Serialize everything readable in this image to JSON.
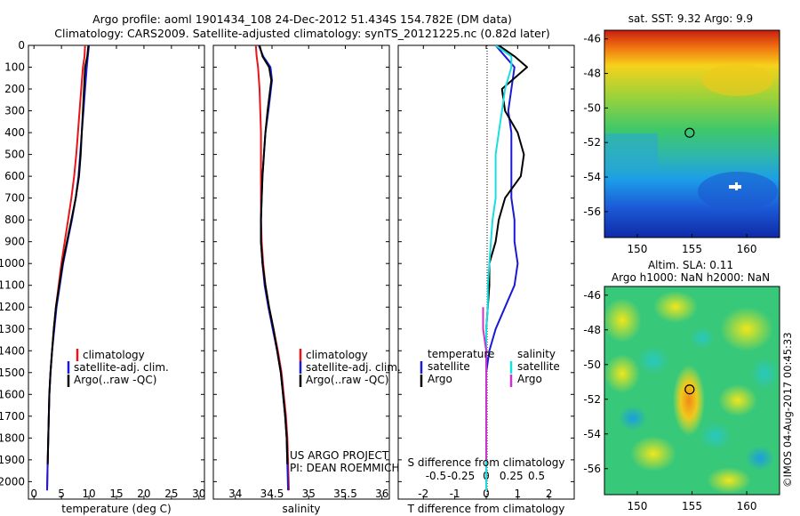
{
  "title": {
    "line1": "Argo profile: aoml 1901434_108 24-Dec-2012 51.434S 154.782E (DM data)",
    "line2": "Climatology: CARS2009. Satellite-adjusted climatology: synTS_20121225.nc (0.82d later)"
  },
  "colors": {
    "climatology": "#e8141a",
    "satellite": "#1a1ad6",
    "argo": "#000000",
    "sat_salinity": "#19dede",
    "argo_salinity": "#cc33cc"
  },
  "credit": {
    "line1": "US ARGO PROJECT",
    "line2": "PI: DEAN ROEMMICH"
  },
  "watermark": "©IMOS 04-Aug-2017 00:45:33",
  "chart_data": [
    {
      "type": "line",
      "xlabel": "temperature (deg C)",
      "xlim": [
        -1,
        31
      ],
      "ylim": [
        2080,
        0
      ],
      "xticks": [
        0,
        5,
        10,
        15,
        20,
        25,
        30
      ],
      "yticks": [
        0,
        100,
        200,
        300,
        400,
        500,
        600,
        700,
        800,
        900,
        1000,
        1100,
        1200,
        1300,
        1400,
        1500,
        1600,
        1700,
        1800,
        1900,
        2000
      ],
      "legend": [
        "climatology",
        "satellite-adj. clim.",
        "Argo(..raw -QC)"
      ],
      "series": [
        {
          "name": "climatology",
          "color": "#e8141a",
          "x": [
            9.3,
            9.2,
            8.9,
            8.6,
            8.3,
            8.0,
            7.7,
            7.3,
            6.8,
            6.2,
            5.6,
            5.0,
            4.5,
            4.0,
            3.6,
            3.3,
            3.0,
            2.8,
            2.7,
            2.6,
            2.5,
            2.4
          ],
          "y": [
            0,
            50,
            100,
            200,
            300,
            400,
            500,
            600,
            700,
            800,
            900,
            1000,
            1100,
            1200,
            1300,
            1400,
            1500,
            1600,
            1700,
            1800,
            1900,
            2040
          ]
        },
        {
          "name": "satellite-adj. clim.",
          "color": "#1a1ad6",
          "x": [
            10.0,
            9.8,
            9.6,
            9.3,
            9.0,
            8.7,
            8.4,
            8.1,
            7.6,
            6.9,
            6.1,
            5.3,
            4.7,
            4.1,
            3.7,
            3.3,
            3.0,
            2.8,
            2.7,
            2.6,
            2.5,
            2.4
          ],
          "y": [
            0,
            50,
            100,
            200,
            300,
            400,
            500,
            600,
            700,
            800,
            900,
            1000,
            1100,
            1200,
            1300,
            1400,
            1500,
            1600,
            1700,
            1800,
            1900,
            2040
          ]
        },
        {
          "name": "Argo(..raw -QC)",
          "color": "#000000",
          "x": [
            9.9,
            9.7,
            9.3,
            9.1,
            8.9,
            8.7,
            8.5,
            8.2,
            7.6,
            6.8,
            6.0,
            5.2,
            4.6,
            4.0,
            3.6,
            3.3,
            3.0,
            2.8,
            2.7,
            2.6,
            2.5
          ],
          "y": [
            0,
            50,
            100,
            200,
            300,
            400,
            500,
            600,
            700,
            800,
            900,
            1000,
            1100,
            1200,
            1300,
            1400,
            1500,
            1600,
            1700,
            1800,
            1920
          ]
        }
      ]
    },
    {
      "type": "line",
      "xlabel": "salinity",
      "xlim": [
        33.7,
        36.1
      ],
      "ylim": [
        2080,
        0
      ],
      "xticks": [
        34,
        34.5,
        35,
        35.5,
        36
      ],
      "legend": [
        "climatology",
        "satellite-adj. clim.",
        "Argo(..raw -QC)"
      ],
      "series": [
        {
          "name": "climatology",
          "color": "#e8141a",
          "x": [
            34.28,
            34.29,
            34.31,
            34.33,
            34.34,
            34.35,
            34.35,
            34.35,
            34.35,
            34.35,
            34.36,
            34.38,
            34.41,
            34.46,
            34.52,
            34.58,
            34.63,
            34.66,
            34.69,
            34.71,
            34.73
          ],
          "y": [
            0,
            50,
            100,
            200,
            300,
            400,
            500,
            600,
            700,
            800,
            900,
            1000,
            1100,
            1200,
            1300,
            1400,
            1500,
            1600,
            1700,
            1800,
            2040
          ]
        },
        {
          "name": "satellite-adj. clim.",
          "color": "#1a1ad6",
          "x": [
            34.32,
            34.38,
            34.48,
            34.5,
            34.45,
            34.41,
            34.39,
            34.37,
            34.36,
            34.35,
            34.35,
            34.37,
            34.4,
            34.45,
            34.51,
            34.57,
            34.62,
            34.65,
            34.68,
            34.7,
            34.72
          ],
          "y": [
            0,
            50,
            100,
            160,
            300,
            400,
            500,
            600,
            700,
            800,
            900,
            1000,
            1100,
            1200,
            1300,
            1400,
            1500,
            1600,
            1700,
            1800,
            2040
          ]
        },
        {
          "name": "Argo(..raw -QC)",
          "color": "#000000",
          "x": [
            34.33,
            34.37,
            34.46,
            34.49,
            34.44,
            34.41,
            34.39,
            34.37,
            34.36,
            34.35,
            34.35,
            34.37,
            34.41,
            34.46,
            34.52,
            34.57,
            34.62,
            34.65,
            34.68,
            34.7,
            34.71
          ],
          "y": [
            0,
            50,
            100,
            160,
            300,
            400,
            500,
            600,
            700,
            800,
            900,
            1000,
            1100,
            1200,
            1300,
            1400,
            1500,
            1600,
            1700,
            1800,
            1920
          ]
        }
      ]
    },
    {
      "type": "line",
      "xlabel": "T difference from climatology",
      "xlabel_top": "S difference from climatology",
      "xlim": [
        -2.8,
        2.8
      ],
      "ylim": [
        2080,
        0
      ],
      "xticks": [
        -2,
        -1,
        0,
        1,
        2
      ],
      "xticklabels": [
        "-2",
        "-1",
        "0",
        "1",
        "2"
      ],
      "xticks_top": [
        -1.6,
        -0.8,
        0,
        0.8,
        1.6
      ],
      "xticklabels_top": [
        "-0.5",
        "-0.25",
        "0",
        "0.25",
        "0.5"
      ],
      "legend_temperature_title": "temperature",
      "legend_salinity_title": "salinity",
      "legend": [
        "satellite",
        "Argo",
        "satellite",
        "Argo"
      ],
      "series": [
        {
          "name": "satellite",
          "color": "#1a1ad6",
          "x": [
            0.3,
            0.6,
            0.9,
            0.8,
            0.7,
            0.8,
            0.8,
            0.8,
            0.8,
            0.9,
            0.9,
            1.0,
            0.9,
            0.6,
            0.3,
            0.1,
            0.0,
            0.0,
            0.0,
            0.0,
            0.0,
            0.0
          ],
          "y": [
            0,
            50,
            100,
            200,
            300,
            400,
            500,
            600,
            700,
            800,
            900,
            1000,
            1100,
            1200,
            1300,
            1400,
            1500,
            1600,
            1700,
            1800,
            1900,
            2040
          ]
        },
        {
          "name": "Argo",
          "color": "#000000",
          "x": [
            0.4,
            0.9,
            1.3,
            0.5,
            0.6,
            1.0,
            1.2,
            1.1,
            0.6,
            0.4,
            0.3,
            0.1,
            0.1,
            0.05,
            0.0,
            0.0,
            0.0,
            0.0,
            0.0,
            0.0,
            0.0
          ],
          "y": [
            0,
            50,
            100,
            200,
            300,
            400,
            500,
            600,
            700,
            800,
            900,
            1000,
            1100,
            1200,
            1300,
            1400,
            1500,
            1600,
            1700,
            1800,
            1920
          ]
        },
        {
          "name": "satellite",
          "color": "#19dede",
          "x": [
            0.3,
            0.8,
            0.8,
            0.6,
            0.5,
            0.4,
            0.3,
            0.3,
            0.3,
            0.2,
            0.15,
            0.1,
            0.05,
            0.05,
            0.0,
            0.0,
            0.0,
            0.0,
            0.0,
            0.0,
            0.0
          ],
          "y": [
            0,
            50,
            100,
            200,
            300,
            400,
            500,
            600,
            700,
            800,
            900,
            1000,
            1100,
            1200,
            1300,
            1400,
            1500,
            1600,
            1700,
            1800,
            2040
          ]
        },
        {
          "name": "Argo",
          "color": "#cc33cc",
          "x": [
            -0.1,
            -0.1,
            0.0,
            0.0,
            0.0,
            0.0
          ],
          "y": [
            1200,
            1300,
            1400,
            1600,
            1800,
            1900
          ]
        }
      ]
    },
    {
      "type": "heatmap",
      "title": "sat. SST: 9.32 Argo: 9.9",
      "xlim": [
        147,
        163
      ],
      "ylim": [
        -57.5,
        -45.5
      ],
      "xticks": [
        150,
        155,
        160
      ],
      "yticks": [
        -46,
        -48,
        -50,
        -52,
        -54,
        -56
      ],
      "marker": {
        "lon": 154.782,
        "lat": -51.434
      }
    },
    {
      "type": "heatmap",
      "title_line1": "Altim. SLA: 0.11",
      "title_line2": "Argo h1000: NaN h2000: NaN",
      "xlim": [
        147,
        163
      ],
      "ylim": [
        -57.5,
        -45.5
      ],
      "xticks": [
        150,
        155,
        160
      ],
      "yticks": [
        -46,
        -48,
        -50,
        -52,
        -54,
        -56
      ],
      "marker": {
        "lon": 154.782,
        "lat": -51.434
      }
    }
  ]
}
